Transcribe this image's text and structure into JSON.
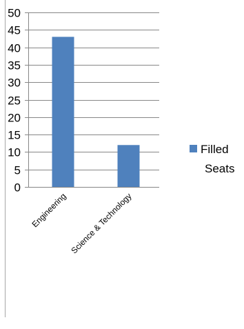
{
  "chart_data": {
    "type": "bar",
    "categories": [
      "Engineering",
      "Science & Technology"
    ],
    "series": [
      {
        "name": "Filled Seats",
        "values": [
          43,
          12
        ],
        "color": "#4f81bd"
      }
    ],
    "ylim": [
      0,
      50
    ],
    "yticks": [
      0,
      5,
      10,
      15,
      20,
      25,
      30,
      35,
      40,
      45,
      50
    ],
    "grid": true,
    "legend_position": "right"
  },
  "legend": {
    "lines": [
      "Filled",
      "Seats"
    ]
  }
}
